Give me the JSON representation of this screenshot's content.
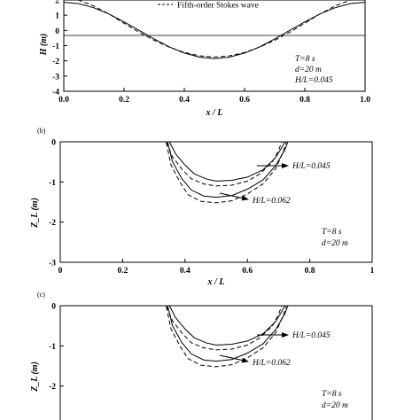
{
  "chart_data": [
    {
      "panel": "",
      "type": "line",
      "xlabel": "x / L",
      "ylabel": "H (m)",
      "xlim": [
        0.0,
        1.0
      ],
      "ylim": [
        -4,
        2
      ],
      "x_ticks": [
        "0.0",
        "0.2",
        "0.4",
        "0.6",
        "0.8",
        "1.0"
      ],
      "y_ticks": [
        "-4",
        "-3",
        "-2",
        "-1",
        "0",
        "1",
        "2"
      ],
      "grid": false,
      "legend": {
        "position": "top-center",
        "entries": [
          "Fifth-order Stokes wave"
        ]
      },
      "series": [
        {
          "name": "",
          "style": "solid",
          "x": [
            0.0,
            0.05,
            0.1,
            0.15,
            0.2,
            0.25,
            0.3,
            0.35,
            0.4,
            0.45,
            0.5,
            0.55,
            0.6,
            0.65,
            0.7,
            0.75,
            0.8,
            0.85,
            0.9,
            0.95,
            1.0
          ],
          "y": [
            1.85,
            1.76,
            1.49,
            1.08,
            0.56,
            0.0,
            -0.56,
            -1.08,
            -1.49,
            -1.76,
            -1.85,
            -1.76,
            -1.49,
            -1.08,
            -0.56,
            0.0,
            0.56,
            1.08,
            1.49,
            1.76,
            1.85
          ]
        },
        {
          "name": "Fifth-order Stokes wave",
          "style": "dashed",
          "x": [
            0.0,
            0.05,
            0.1,
            0.15,
            0.2,
            0.25,
            0.3,
            0.35,
            0.4,
            0.45,
            0.5,
            0.55,
            0.6,
            0.65,
            0.7,
            0.75,
            0.8,
            0.85,
            0.9,
            0.95,
            1.0
          ],
          "y": [
            2.15,
            1.99,
            1.6,
            1.08,
            0.47,
            -0.12,
            -0.65,
            -1.1,
            -1.45,
            -1.67,
            -1.75,
            -1.67,
            -1.45,
            -1.1,
            -0.65,
            -0.12,
            0.47,
            1.08,
            1.6,
            1.99,
            2.15
          ]
        }
      ],
      "annotations": {
        "period": "T=8 s",
        "depth": "d=20 m",
        "steepness": "H/L=0.045"
      }
    },
    {
      "panel": "(b)",
      "type": "line",
      "xlabel": "x / L",
      "ylabel": "Z_L (m)",
      "xlim": [
        0,
        1
      ],
      "ylim": [
        -3,
        0
      ],
      "x_ticks": [
        "0",
        "0.2",
        "0.4",
        "0.6",
        "0.8",
        "1"
      ],
      "y_ticks": [
        "-3",
        "-2",
        "-1",
        "0"
      ],
      "grid": false,
      "series": [
        {
          "name": "",
          "style": "solid",
          "x": [
            0.35,
            0.37,
            0.4,
            0.43,
            0.47,
            0.5,
            0.55,
            0.6,
            0.65,
            0.69,
            0.71,
            0.72
          ],
          "y": [
            0.0,
            -0.3,
            -0.58,
            -0.8,
            -0.93,
            -0.98,
            -0.96,
            -0.88,
            -0.7,
            -0.4,
            -0.15,
            0.0
          ]
        },
        {
          "name": "",
          "style": "dashed",
          "x": [
            0.34,
            0.36,
            0.39,
            0.42,
            0.46,
            0.5,
            0.55,
            0.6,
            0.64,
            0.68,
            0.7,
            0.71
          ],
          "y": [
            0.0,
            -0.38,
            -0.68,
            -0.92,
            -1.05,
            -1.1,
            -1.08,
            -0.98,
            -0.8,
            -0.5,
            -0.22,
            0.0
          ]
        },
        {
          "name": "",
          "style": "solid",
          "x": [
            0.345,
            0.36,
            0.39,
            0.42,
            0.46,
            0.5,
            0.55,
            0.6,
            0.65,
            0.69,
            0.72,
            0.73
          ],
          "y": [
            -0.02,
            -0.5,
            -0.92,
            -1.2,
            -1.35,
            -1.38,
            -1.34,
            -1.18,
            -0.95,
            -0.6,
            -0.2,
            0.0
          ]
        },
        {
          "name": "",
          "style": "dashed",
          "x": [
            0.34,
            0.355,
            0.385,
            0.41,
            0.45,
            0.5,
            0.55,
            0.6,
            0.65,
            0.69,
            0.715,
            0.725
          ],
          "y": [
            -0.02,
            -0.58,
            -1.02,
            -1.32,
            -1.48,
            -1.52,
            -1.47,
            -1.3,
            -1.05,
            -0.68,
            -0.25,
            0.0
          ]
        }
      ],
      "annotations": {
        "label_upper": "H/L=0.045",
        "label_lower": "H/L=0.062",
        "period": "T=8 s",
        "depth": "d=20 m"
      }
    },
    {
      "panel": "(c)",
      "type": "line",
      "xlabel": "",
      "ylabel": "Z_L (m)",
      "xlim": [
        0,
        1
      ],
      "ylim": [
        -3,
        0
      ],
      "x_ticks": [],
      "y_ticks": [
        "-2",
        "-1",
        "0"
      ],
      "grid": false,
      "series": [
        {
          "name": "",
          "style": "solid",
          "x": [
            0.35,
            0.37,
            0.4,
            0.43,
            0.47,
            0.5,
            0.55,
            0.6,
            0.65,
            0.69,
            0.71,
            0.72
          ],
          "y": [
            0.0,
            -0.3,
            -0.58,
            -0.8,
            -0.93,
            -0.98,
            -0.96,
            -0.88,
            -0.7,
            -0.4,
            -0.15,
            0.0
          ]
        },
        {
          "name": "",
          "style": "dashed",
          "x": [
            0.34,
            0.36,
            0.39,
            0.42,
            0.46,
            0.5,
            0.55,
            0.6,
            0.64,
            0.68,
            0.7,
            0.71
          ],
          "y": [
            0.0,
            -0.38,
            -0.68,
            -0.92,
            -1.05,
            -1.1,
            -1.08,
            -0.98,
            -0.8,
            -0.5,
            -0.22,
            0.0
          ]
        },
        {
          "name": "",
          "style": "solid",
          "x": [
            0.345,
            0.36,
            0.39,
            0.42,
            0.46,
            0.5,
            0.55,
            0.6,
            0.65,
            0.69,
            0.72,
            0.73
          ],
          "y": [
            -0.02,
            -0.5,
            -0.92,
            -1.2,
            -1.35,
            -1.38,
            -1.34,
            -1.18,
            -0.95,
            -0.6,
            -0.2,
            0.0
          ]
        },
        {
          "name": "",
          "style": "dashed",
          "x": [
            0.34,
            0.355,
            0.385,
            0.41,
            0.45,
            0.5,
            0.55,
            0.6,
            0.65,
            0.69,
            0.715,
            0.725
          ],
          "y": [
            -0.02,
            -0.58,
            -1.02,
            -1.32,
            -1.48,
            -1.52,
            -1.47,
            -1.3,
            -1.05,
            -0.68,
            -0.25,
            0.0
          ]
        }
      ],
      "annotations": {
        "label_upper": "H/L=0.045",
        "label_lower": "H/L=0.062",
        "period": "T=8 s",
        "depth": "d=20 m"
      }
    }
  ]
}
